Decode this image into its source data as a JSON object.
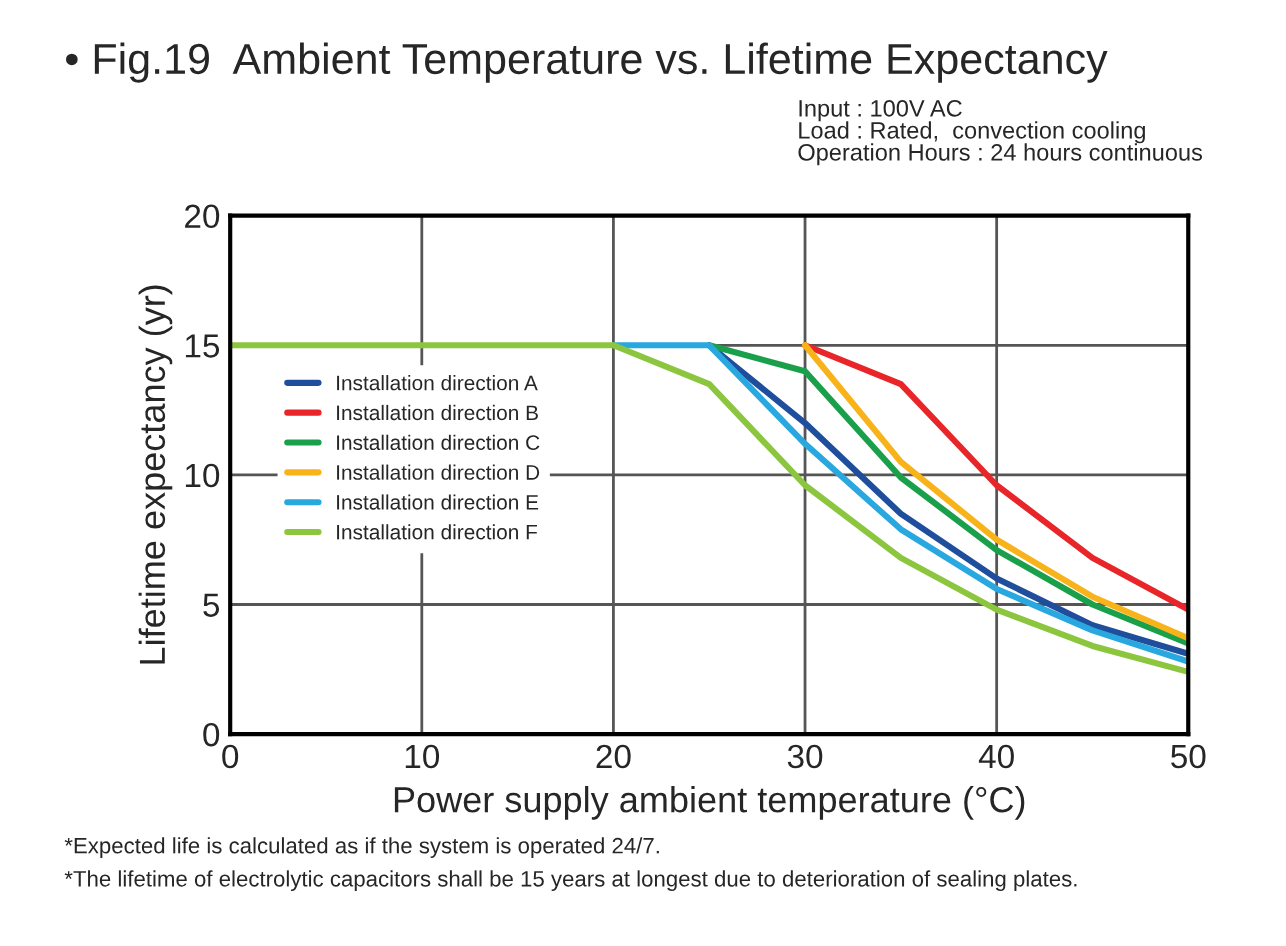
{
  "chart_data": {
    "type": "line",
    "title": "• Fig.19  Ambient Temperature vs. Lifetime Expectancy",
    "subtitle": "Input : 100V AC\nLoad : Rated,  convection cooling\nOperation Hours : 24 hours continuous",
    "xlabel": "Power supply ambient temperature (°C)",
    "ylabel": "Lifetime expectancy (yr)",
    "x": [
      0,
      20,
      25,
      30,
      35,
      40,
      45,
      50
    ],
    "series": [
      {
        "name": "Installation direction A",
        "color": "#1f4e9c",
        "x": [
          25,
          30,
          35,
          40,
          45,
          50
        ],
        "values": [
          15,
          12.0,
          8.5,
          6.0,
          4.2,
          3.1
        ]
      },
      {
        "name": "Installation direction B",
        "color": "#e8262a",
        "x": [
          30,
          35,
          40,
          45,
          50
        ],
        "values": [
          15,
          13.5,
          9.6,
          6.8,
          4.8
        ]
      },
      {
        "name": "Installation direction C",
        "color": "#1aa04a",
        "x": [
          25,
          30,
          35,
          40,
          45,
          50
        ],
        "values": [
          15,
          14.0,
          9.9,
          7.1,
          5.0,
          3.5
        ]
      },
      {
        "name": "Installation direction D",
        "color": "#f7b319",
        "x": [
          30,
          35,
          40,
          45,
          50
        ],
        "values": [
          15,
          10.5,
          7.5,
          5.3,
          3.7
        ]
      },
      {
        "name": "Installation direction E",
        "color": "#29a8e0",
        "x": [
          20,
          25,
          30,
          35,
          40,
          45,
          50
        ],
        "values": [
          15,
          15,
          11.2,
          7.9,
          5.6,
          4.0,
          2.8
        ]
      },
      {
        "name": "Installation direction F",
        "color": "#8cc63f",
        "values": [
          15,
          15,
          13.5,
          9.6,
          6.8,
          4.8,
          3.4,
          2.4
        ]
      }
    ],
    "xlim": [
      0,
      50
    ],
    "xticks": [
      0,
      10,
      20,
      30,
      40,
      50
    ],
    "ylim": [
      0,
      20
    ],
    "yticks": [
      0,
      5,
      10,
      15,
      20
    ],
    "grid": true,
    "legend": "left",
    "marker": "none",
    "line_style": "solid",
    "annotations": [
      "*Expected life is calculated as if the system is operated 24/7.",
      "*The lifetime of electrolytic capacitors shall be 15 years at longest due to deterioration of sealing plates."
    ]
  }
}
